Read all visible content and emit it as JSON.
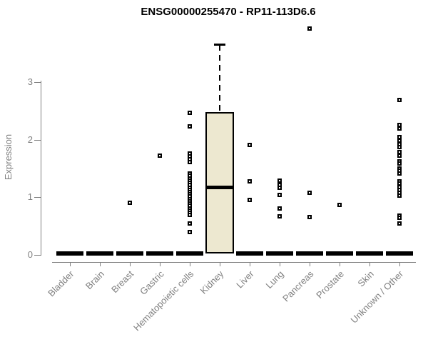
{
  "chart_data": {
    "type": "boxplot",
    "title": "ENSG00000255470 - RP11-113D6.6",
    "xlabel": "",
    "ylabel": "Expression",
    "yticks": [
      0,
      1,
      2,
      3
    ],
    "ylim": [
      0,
      3.95
    ],
    "grid": false,
    "legend": "none",
    "colors": {
      "box_fill": "#EDE8D0",
      "ink": "#000000",
      "axis": "#808080"
    },
    "categories": [
      "Bladder",
      "Brain",
      "Breast",
      "Gastric",
      "Hematopoietic cells",
      "Kidney",
      "Liver",
      "Lung",
      "Pancreas",
      "Prostate",
      "Skin",
      "Unknown / Other"
    ],
    "groups": [
      {
        "label": "Bladder",
        "flat_box_at": 0,
        "points": []
      },
      {
        "label": "Brain",
        "flat_box_at": 0,
        "points": []
      },
      {
        "label": "Breast",
        "flat_box_at": 0,
        "points": [
          0.9
        ]
      },
      {
        "label": "Gastric",
        "flat_box_at": 0,
        "points": [
          1.72
        ]
      },
      {
        "label": "Hematopoietic cells",
        "flat_box_at": 0,
        "points": [
          2.47,
          2.23,
          1.76,
          1.71,
          1.66,
          1.61,
          1.41,
          1.37,
          1.33,
          1.29,
          1.25,
          1.21,
          1.17,
          1.13,
          1.09,
          1.05,
          1.01,
          0.97,
          0.93,
          0.89,
          0.85,
          0.81,
          0.77,
          0.73,
          0.69,
          0.55,
          0.4
        ]
      },
      {
        "label": "Kidney",
        "box": {
          "whisker_low": 0.02,
          "q1": 0.02,
          "median": 1.18,
          "q3": 2.48,
          "whisker_high": 3.64
        },
        "points": []
      },
      {
        "label": "Liver",
        "flat_box_at": 0,
        "points": [
          1.91,
          1.28,
          0.95
        ]
      },
      {
        "label": "Lung",
        "flat_box_at": 0,
        "points": [
          1.29,
          1.21,
          1.16,
          1.04,
          0.81,
          0.67
        ]
      },
      {
        "label": "Pancreas",
        "flat_box_at": 0,
        "points": [
          3.93,
          1.08,
          0.66
        ]
      },
      {
        "label": "Prostate",
        "flat_box_at": 0,
        "points": [
          0.87
        ]
      },
      {
        "label": "Skin",
        "flat_box_at": 0,
        "points": []
      },
      {
        "label": "Unknown / Other",
        "flat_box_at": 0,
        "points": [
          2.69,
          2.26,
          2.19,
          2.05,
          1.98,
          1.92,
          1.87,
          1.78,
          1.72,
          1.62,
          1.58,
          1.5,
          1.46,
          1.41,
          1.28,
          1.24,
          1.18,
          1.13,
          1.08,
          1.03,
          0.68,
          0.64,
          0.55
        ]
      }
    ]
  }
}
